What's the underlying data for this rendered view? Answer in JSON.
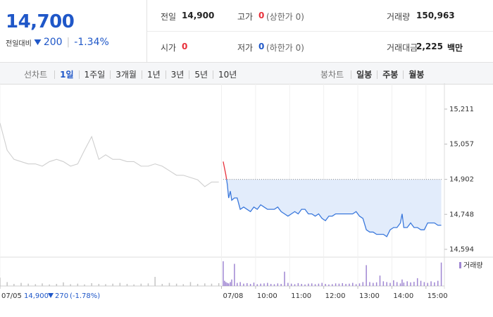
{
  "quote": {
    "price": "14,700",
    "change_label": "전일대비",
    "change": "200",
    "change_pct": "-1.34%"
  },
  "stats": [
    {
      "label": "전일",
      "value": "14,900"
    },
    {
      "label": "고가",
      "value": "0",
      "note": "(상한가 0)"
    },
    {
      "label": "거래량",
      "value": "150,963"
    },
    {
      "label": "시가",
      "value": "0"
    },
    {
      "label": "저가",
      "value": "0",
      "note": "(하한가 0)"
    },
    {
      "label": "거래대금",
      "value": "2,225",
      "unit": "백만"
    }
  ],
  "tabs": {
    "line_label": "선차트",
    "line_periods": [
      "1일",
      "1주일",
      "3개월",
      "1년",
      "3년",
      "5년",
      "10년"
    ],
    "candle_label": "봉차트",
    "candle_periods": [
      "일봉",
      "주봉",
      "월봉"
    ]
  },
  "footer": {
    "price": "14,900",
    "change": "270",
    "change_pct": "(-1.78%)"
  },
  "chart_data": [
    {
      "type": "line",
      "xlim": [
        0,
        13
      ],
      "xticks": [
        {
          "value": 0,
          "label": "07/05"
        },
        {
          "value": 6.5,
          "label": "07/08"
        },
        {
          "value": 7.5,
          "label": "10:00"
        },
        {
          "value": 8.5,
          "label": "11:00"
        },
        {
          "value": 9.5,
          "label": "12:00"
        },
        {
          "value": 10.5,
          "label": "13:00"
        },
        {
          "value": 11.5,
          "label": "14:00"
        },
        {
          "value": 12.5,
          "label": "15:00"
        }
      ],
      "ylim": [
        14569,
        15313
      ],
      "yticks": [
        {
          "value": 15211,
          "label": "15,211"
        },
        {
          "value": 15057,
          "label": "15,057"
        },
        {
          "value": 14902,
          "label": "14,902"
        },
        {
          "value": 14748,
          "label": "14,748"
        },
        {
          "value": 14594,
          "label": "14,594"
        }
      ],
      "baseline": 14902,
      "grid": "x",
      "series": [
        {
          "color": "#cfcfcf",
          "x": [
            0,
            0.21,
            0.41,
            0.62,
            0.83,
            1.04,
            1.24,
            1.45,
            1.66,
            1.86,
            2.07,
            2.28,
            2.48,
            2.69,
            2.9,
            3.1,
            3.31,
            3.52,
            3.73,
            3.93,
            4.14,
            4.35,
            4.55,
            4.76,
            4.97,
            5.18,
            5.38,
            5.59,
            5.8,
            6.01,
            6.21,
            6.42
          ],
          "values": [
            15150,
            15030,
            14990,
            14980,
            14970,
            14970,
            14960,
            14980,
            14990,
            14980,
            14960,
            14970,
            15030,
            15090,
            14990,
            15010,
            14990,
            14990,
            14980,
            14980,
            14960,
            14960,
            14970,
            14960,
            14940,
            14920,
            14920,
            14910,
            14900,
            14870,
            14890,
            14890
          ]
        },
        {
          "color": "#3a78dc",
          "up_color": "#e8303a",
          "fill": "#e2ecfb",
          "x": [
            6.55,
            6.59,
            6.63,
            6.67,
            6.71,
            6.76,
            6.8,
            6.88,
            6.96,
            7.05,
            7.15,
            7.25,
            7.35,
            7.45,
            7.55,
            7.65,
            7.75,
            7.85,
            7.95,
            8.05,
            8.15,
            8.25,
            8.35,
            8.45,
            8.55,
            8.65,
            8.75,
            8.85,
            8.95,
            9.05,
            9.15,
            9.25,
            9.35,
            9.45,
            9.55,
            9.65,
            9.75,
            9.85,
            9.95,
            10.05,
            10.15,
            10.25,
            10.35,
            10.45,
            10.55,
            10.65,
            10.75,
            10.85,
            10.95,
            11.05,
            11.15,
            11.25,
            11.35,
            11.45,
            11.55,
            11.65,
            11.75,
            11.8,
            11.85,
            11.95,
            12.05,
            12.15,
            12.25,
            12.35,
            12.45,
            12.55,
            12.65,
            12.75,
            12.85,
            12.95
          ],
          "values": [
            14980,
            14950,
            14920,
            14880,
            14820,
            14850,
            14810,
            14820,
            14820,
            14770,
            14780,
            14770,
            14760,
            14780,
            14770,
            14790,
            14780,
            14770,
            14770,
            14770,
            14780,
            14760,
            14750,
            14740,
            14750,
            14760,
            14750,
            14770,
            14770,
            14750,
            14750,
            14740,
            14750,
            14730,
            14720,
            14740,
            14740,
            14750,
            14750,
            14750,
            14750,
            14750,
            14750,
            14760,
            14740,
            14730,
            14680,
            14670,
            14670,
            14660,
            14660,
            14660,
            14650,
            14680,
            14690,
            14690,
            14710,
            14750,
            14690,
            14690,
            14710,
            14690,
            14690,
            14680,
            14680,
            14710,
            14710,
            14710,
            14700,
            14700
          ]
        }
      ]
    },
    {
      "type": "bar",
      "ylim": [
        0,
        10000
      ],
      "series": [
        {
          "color": "#c4c4c4",
          "x": [
            0,
            0.21,
            0.41,
            0.62,
            0.83,
            1.04,
            1.24,
            1.45,
            1.66,
            1.86,
            2.07,
            2.28,
            2.48,
            2.69,
            2.9,
            3.1,
            3.31,
            3.52,
            3.73,
            3.93,
            4.14,
            4.35,
            4.55,
            4.76,
            4.97,
            5.18,
            5.38,
            5.59,
            5.8,
            6.01,
            6.21,
            6.42
          ],
          "values": [
            3200,
            1500,
            800,
            1200,
            900,
            700,
            1000,
            600,
            800,
            1400,
            700,
            900,
            600,
            1100,
            800,
            700,
            900,
            1200,
            800,
            600,
            900,
            1000,
            3500,
            800,
            1200,
            900,
            700,
            1500,
            800,
            1000,
            900,
            1100
          ]
        },
        {
          "name": "거래량",
          "color": "#9f86d2",
          "x": [
            6.55,
            6.59,
            6.63,
            6.67,
            6.71,
            6.76,
            6.8,
            6.88,
            6.96,
            7.05,
            7.15,
            7.25,
            7.35,
            7.45,
            7.55,
            7.65,
            7.75,
            7.85,
            7.95,
            8.05,
            8.15,
            8.25,
            8.35,
            8.45,
            8.55,
            8.65,
            8.75,
            8.85,
            8.95,
            9.05,
            9.15,
            9.25,
            9.35,
            9.45,
            9.55,
            9.65,
            9.75,
            9.85,
            9.95,
            10.05,
            10.15,
            10.25,
            10.35,
            10.45,
            10.55,
            10.65,
            10.75,
            10.85,
            10.95,
            11.05,
            11.15,
            11.25,
            11.35,
            11.45,
            11.55,
            11.65,
            11.75,
            11.8,
            11.85,
            11.95,
            12.05,
            12.15,
            12.25,
            12.35,
            12.45,
            12.55,
            12.65,
            12.75,
            12.85,
            12.95
          ],
          "values": [
            9500,
            2000,
            1500,
            1200,
            1000,
            1500,
            2500,
            8500,
            1200,
            1500,
            900,
            1100,
            800,
            1300,
            700,
            900,
            1000,
            1200,
            800,
            700,
            1000,
            800,
            5500,
            1200,
            900,
            700,
            1100,
            800,
            600,
            900,
            1000,
            700,
            900,
            1200,
            800,
            600,
            700,
            1000,
            900,
            1100,
            800,
            900,
            1200,
            700,
            1000,
            1500,
            8000,
            1500,
            1200,
            1400,
            4000,
            1800,
            1500,
            1200,
            2200,
            1500,
            1000,
            2500,
            1300,
            1800,
            1400,
            1600,
            3000,
            2000,
            1500,
            1200,
            1800,
            1400,
            2000,
            9000
          ]
        }
      ]
    }
  ]
}
